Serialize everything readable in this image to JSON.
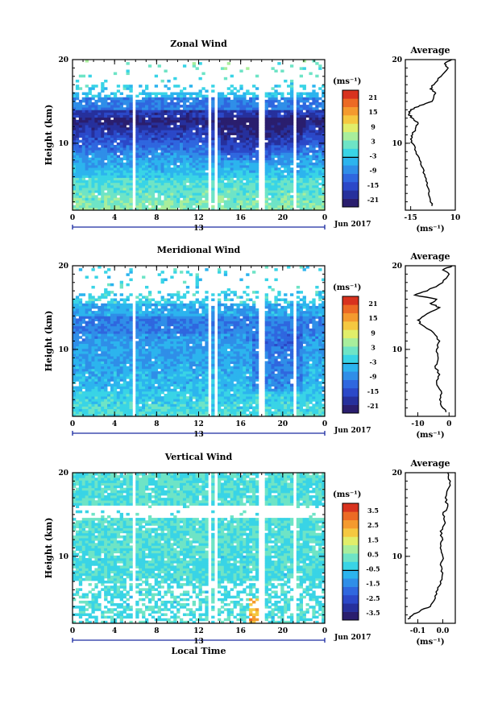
{
  "chart_data": [
    {
      "type": "heatmap",
      "title": "Zonal Wind",
      "ylabel": "Height (km)",
      "xlabel": "",
      "xlim": [
        0,
        24
      ],
      "ylim": [
        2,
        20
      ],
      "x_ticks": [
        "0",
        "4",
        "8",
        "12",
        "16",
        "20",
        "0"
      ],
      "y_ticks": [
        "10",
        "20"
      ],
      "date_marker": "13",
      "date_label": "Jun 2017",
      "colorbar": {
        "unit": "(ms⁻¹)",
        "ticks": [
          "21",
          "15",
          "9",
          "3",
          "-3",
          "-9",
          "-15",
          "-21"
        ],
        "range": [
          -24,
          24
        ]
      },
      "average": {
        "title": "Average",
        "xlim": [
          -18,
          10
        ],
        "x_ticks": [
          "-15",
          "10"
        ],
        "y_ticks": [
          "10",
          "20"
        ],
        "xlabel": "(ms⁻¹)",
        "profile": [
          [
            2.5,
            -3
          ],
          [
            3,
            -4
          ],
          [
            4,
            -5
          ],
          [
            5,
            -6
          ],
          [
            6,
            -7
          ],
          [
            7,
            -8
          ],
          [
            8,
            -10
          ],
          [
            9,
            -12
          ],
          [
            10,
            -14
          ],
          [
            10.5,
            -15
          ],
          [
            11,
            -14
          ],
          [
            12,
            -12
          ],
          [
            12.5,
            -11
          ],
          [
            13,
            -14
          ],
          [
            13.5,
            -16
          ],
          [
            14,
            -15
          ],
          [
            14.5,
            -10
          ],
          [
            15,
            -3
          ],
          [
            16,
            -1
          ],
          [
            16.5,
            -4
          ],
          [
            17,
            -2
          ],
          [
            18,
            2
          ],
          [
            19,
            6
          ],
          [
            19.5,
            4
          ],
          [
            20,
            8
          ]
        ]
      }
    },
    {
      "type": "heatmap",
      "title": "Meridional Wind",
      "ylabel": "Height (km)",
      "xlabel": "",
      "xlim": [
        0,
        24
      ],
      "ylim": [
        2,
        20
      ],
      "x_ticks": [
        "0",
        "4",
        "8",
        "12",
        "16",
        "20",
        "0"
      ],
      "y_ticks": [
        "10",
        "20"
      ],
      "date_marker": "13",
      "date_label": "Jun 2017",
      "colorbar": {
        "unit": "(ms⁻¹)",
        "ticks": [
          "21",
          "15",
          "9",
          "3",
          "-3",
          "-9",
          "-15",
          "-21"
        ],
        "range": [
          -24,
          24
        ]
      },
      "average": {
        "title": "Average",
        "xlim": [
          -14,
          2
        ],
        "x_ticks": [
          "-10",
          "0"
        ],
        "y_ticks": [
          "10",
          "20"
        ],
        "xlabel": "(ms⁻¹)",
        "profile": [
          [
            2.5,
            -1
          ],
          [
            3,
            -2
          ],
          [
            4,
            -3
          ],
          [
            5,
            -2.5
          ],
          [
            6,
            -4
          ],
          [
            7,
            -3
          ],
          [
            8,
            -4.5
          ],
          [
            9,
            -3.5
          ],
          [
            10,
            -4
          ],
          [
            11,
            -3
          ],
          [
            12,
            -5
          ],
          [
            13,
            -9
          ],
          [
            13.5,
            -10
          ],
          [
            14,
            -8
          ],
          [
            15,
            -3
          ],
          [
            15.5,
            -6
          ],
          [
            16,
            -4
          ],
          [
            16.5,
            -11
          ],
          [
            17,
            -7
          ],
          [
            18,
            -2
          ],
          [
            19,
            0
          ],
          [
            19.5,
            -2
          ],
          [
            20,
            1
          ]
        ]
      }
    },
    {
      "type": "heatmap",
      "title": "Vertical Wind",
      "ylabel": "Height (km)",
      "xlabel": "Local Time",
      "xlim": [
        0,
        24
      ],
      "ylim": [
        2,
        20
      ],
      "x_ticks": [
        "0",
        "4",
        "8",
        "12",
        "16",
        "20",
        "0"
      ],
      "y_ticks": [
        "10",
        "20"
      ],
      "date_marker": "13",
      "date_label": "Jun 2017",
      "colorbar": {
        "unit": "(ms⁻¹)",
        "ticks": [
          "3.5",
          "2.5",
          "1.5",
          "0.5",
          "-0.5",
          "-1.5",
          "-2.5",
          "-3.5"
        ],
        "range": [
          -4,
          4
        ]
      },
      "average": {
        "title": "Average",
        "xlim": [
          -0.15,
          0.05
        ],
        "x_ticks": [
          "-0.1",
          "0.0"
        ],
        "y_ticks": [
          "10",
          "20"
        ],
        "xlabel": "(ms⁻¹)",
        "profile": [
          [
            2.5,
            -0.14
          ],
          [
            3,
            -0.12
          ],
          [
            3.5,
            -0.09
          ],
          [
            4,
            -0.05
          ],
          [
            5,
            -0.03
          ],
          [
            6,
            -0.02
          ],
          [
            7,
            -0.01
          ],
          [
            8,
            0.0
          ],
          [
            9,
            -0.01
          ],
          [
            10,
            0.0
          ],
          [
            11,
            -0.01
          ],
          [
            12,
            0.0
          ],
          [
            13,
            -0.01
          ],
          [
            14,
            0.01
          ],
          [
            15,
            0.0
          ],
          [
            16,
            0.02
          ],
          [
            17,
            0.01
          ],
          [
            18,
            0.02
          ],
          [
            19,
            0.03
          ],
          [
            20,
            0.02
          ]
        ]
      }
    }
  ]
}
